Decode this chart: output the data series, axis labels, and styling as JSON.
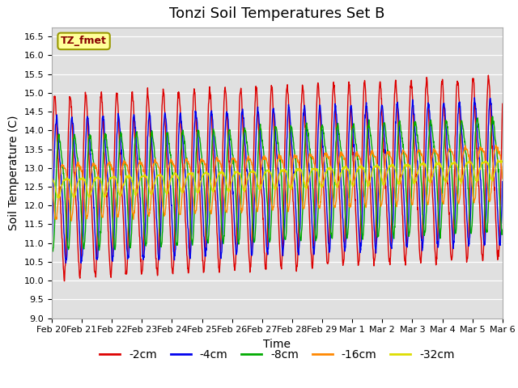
{
  "title": "Tonzi Soil Temperatures Set B",
  "xlabel": "Time",
  "ylabel": "Soil Temperature (C)",
  "ylim": [
    9.0,
    16.75
  ],
  "legend_label": "TZ_fmet",
  "x_tick_labels": [
    "Feb 20",
    "Feb 21",
    "Feb 22",
    "Feb 23",
    "Feb 24",
    "Feb 25",
    "Feb 26",
    "Feb 27",
    "Feb 28",
    "Feb 29",
    "Mar 1",
    "Mar 2",
    "Mar 3",
    "Mar 4",
    "Mar 5",
    "Mar 6"
  ],
  "series_labels": [
    "-2cm",
    "-4cm",
    "-8cm",
    "-16cm",
    "-32cm"
  ],
  "series_colors": [
    "#dd0000",
    "#0000ee",
    "#00aa00",
    "#ff8800",
    "#dddd00"
  ],
  "background_color": "#e0e0e0",
  "title_fontsize": 13,
  "axis_fontsize": 10,
  "tick_fontsize": 8,
  "legend_fontsize": 10,
  "n_points": 1600,
  "base_mean": 12.5,
  "trend_total": 0.5,
  "amplitudes": [
    2.2,
    1.75,
    1.4,
    0.7,
    0.25
  ],
  "phase_lags": [
    0.0,
    0.12,
    0.28,
    0.5,
    0.68
  ],
  "period_days": 0.55,
  "noise_std": [
    0.06,
    0.05,
    0.04,
    0.03,
    0.02
  ]
}
